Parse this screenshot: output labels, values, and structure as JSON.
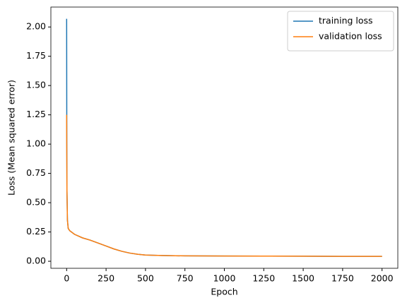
{
  "chart_data": {
    "type": "line",
    "xlabel": "Epoch",
    "ylabel": "Loss (Mean squared error)",
    "x": [
      0,
      1,
      2,
      5,
      10,
      20,
      50,
      100,
      150,
      200,
      250,
      300,
      350,
      400,
      450,
      500,
      600,
      750,
      1000,
      1250,
      1500,
      1750,
      2000
    ],
    "series": [
      {
        "name": "training loss",
        "color": "#1f77b4",
        "values": [
          2.07,
          1.0,
          0.6,
          0.35,
          0.28,
          0.26,
          0.23,
          0.2,
          0.18,
          0.155,
          0.13,
          0.105,
          0.085,
          0.07,
          0.06,
          0.053,
          0.049,
          0.046,
          0.045,
          0.044,
          0.043,
          0.042,
          0.042
        ]
      },
      {
        "name": "validation loss",
        "color": "#ff7f0e",
        "values": [
          1.25,
          0.9,
          0.6,
          0.35,
          0.28,
          0.26,
          0.23,
          0.2,
          0.18,
          0.155,
          0.13,
          0.105,
          0.085,
          0.07,
          0.06,
          0.053,
          0.049,
          0.046,
          0.045,
          0.044,
          0.043,
          0.042,
          0.042
        ]
      }
    ],
    "xlim": [
      -100,
      2100
    ],
    "ylim": [
      -0.06,
      2.17
    ],
    "xticks": [
      0,
      250,
      500,
      750,
      1000,
      1250,
      1500,
      1750,
      2000
    ],
    "yticks": [
      {
        "value": 0,
        "label": "0.00"
      },
      0.25,
      {
        "value": 0.5,
        "label": "0.50"
      },
      0.75,
      {
        "value": 1,
        "label": "1.00"
      },
      1.25,
      {
        "value": 1.5,
        "label": "1.50"
      },
      1.75,
      {
        "value": 2,
        "label": "2.00"
      }
    ],
    "legend": "upper right",
    "grid": false
  }
}
